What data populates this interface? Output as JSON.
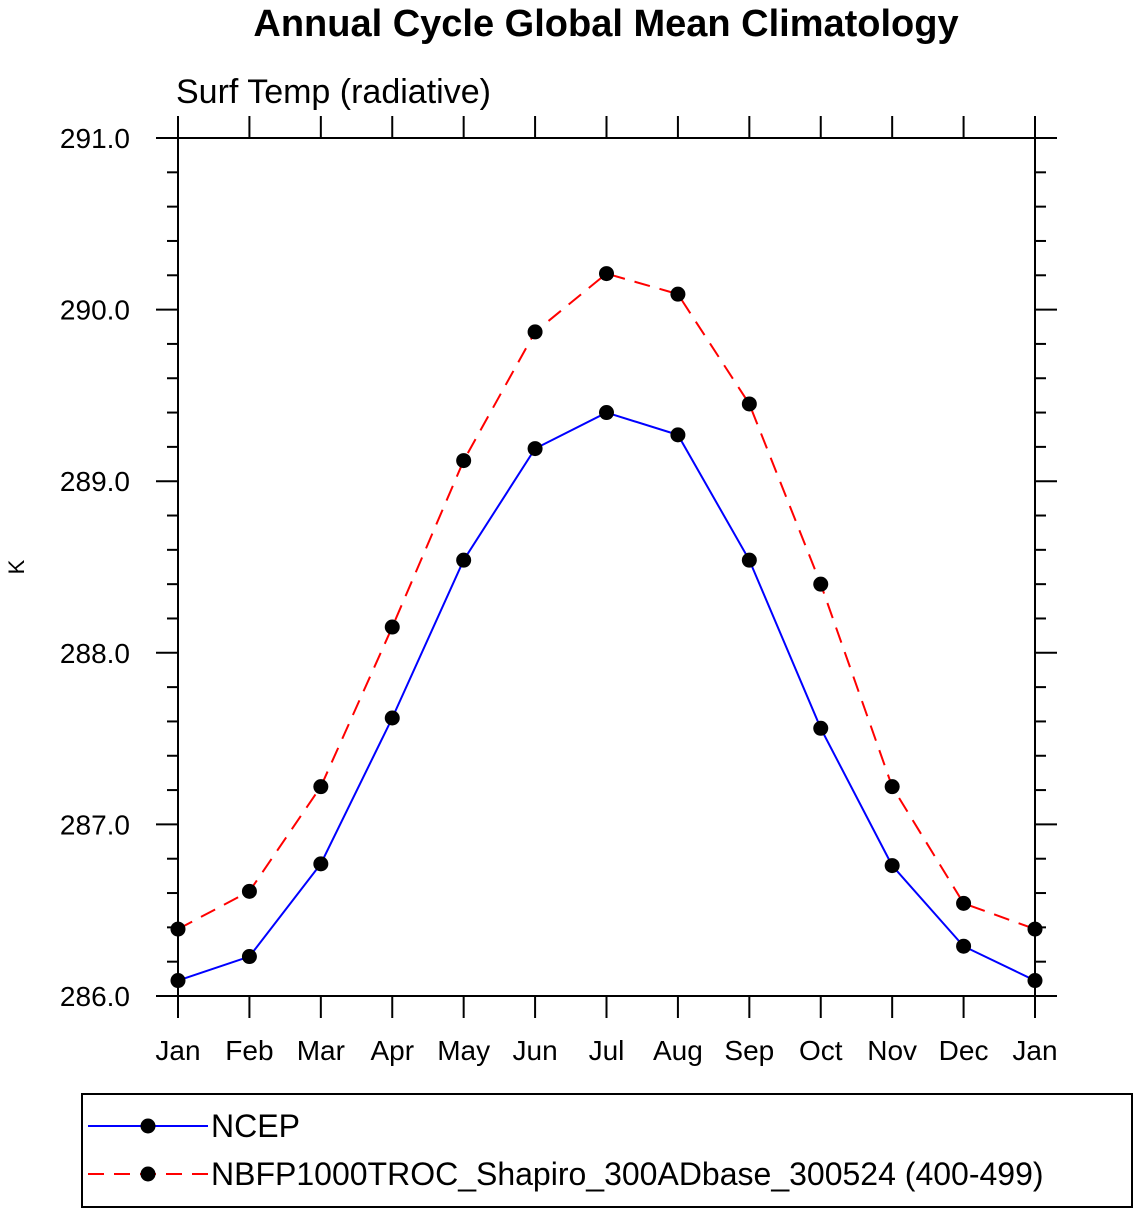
{
  "chart_data": {
    "type": "line",
    "title": "Annual Cycle Global Mean Climatology",
    "subtitle": "Surf Temp (radiative)",
    "xlabel": "",
    "ylabel": "K",
    "categories": [
      "Jan",
      "Feb",
      "Mar",
      "Apr",
      "May",
      "Jun",
      "Jul",
      "Aug",
      "Sep",
      "Oct",
      "Nov",
      "Dec",
      "Jan"
    ],
    "ylim": [
      286.0,
      291.0
    ],
    "ytick_labels": [
      "286.0",
      "287.0",
      "288.0",
      "289.0",
      "290.0",
      "291.0"
    ],
    "grid": false,
    "legend_position": "bottom",
    "series": [
      {
        "name": "NCEP",
        "color": "#0000ff",
        "line_style": "solid",
        "marker": "filled-circle",
        "values": [
          286.09,
          286.23,
          286.77,
          287.62,
          288.54,
          289.19,
          289.4,
          289.27,
          288.54,
          287.56,
          286.76,
          286.29,
          286.09
        ]
      },
      {
        "name": "NBFP1000TROC_Shapiro_300ADbase_300524 (400-499)",
        "color": "#ff0000",
        "line_style": "dashed",
        "marker": "filled-circle",
        "values": [
          286.39,
          286.61,
          287.22,
          288.15,
          289.12,
          289.87,
          290.21,
          290.09,
          289.45,
          288.4,
          287.22,
          286.54,
          286.39
        ]
      }
    ]
  }
}
